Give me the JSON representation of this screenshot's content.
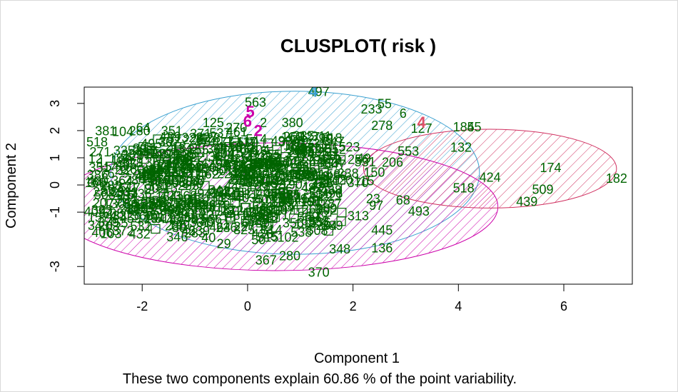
{
  "chart_data": {
    "type": "scatter",
    "title": "CLUSPLOT( risk )",
    "xlabel": "Component 1",
    "ylabel": "Component 2",
    "subtitle": "These two components explain 60.86 % of the point variability.",
    "xlim": [
      -3.1,
      7.3
    ],
    "ylim": [
      -3.65,
      3.6
    ],
    "xticks": [
      -2,
      0,
      2,
      4,
      6
    ],
    "yticks": [
      -3,
      -1,
      0,
      1,
      2,
      3
    ],
    "grid": false,
    "colors": {
      "points": "#006400",
      "cluster1": "#e03c8a",
      "cluster2": "#3aa0d0",
      "cluster3": "#cc00aa",
      "cluster4": "#e0506a",
      "cluster5": "#3aa0d0",
      "cluster6": "#cc00aa",
      "ellipse_blue": "#3aa0d0",
      "ellipse_magenta": "#cc00aa",
      "ellipse_pink": "#d03060"
    },
    "ellipses": [
      {
        "name": "blue",
        "cx": 0.9,
        "cy": 0.45,
        "rx": 3.5,
        "ry": 3.0,
        "color": "#3aa0d0"
      },
      {
        "name": "magenta",
        "cx": 0.55,
        "cy": -0.8,
        "rx": 4.2,
        "ry": 2.35,
        "color": "#cc00aa"
      },
      {
        "name": "pink",
        "cx": 4.6,
        "cy": 0.6,
        "rx": 2.4,
        "ry": 1.45,
        "color": "#d03060"
      }
    ],
    "cluster_labels": [
      {
        "label": "4",
        "x": 1.25,
        "y": 3.4,
        "color": "#3aa0d0"
      },
      {
        "label": "5",
        "x": 0.05,
        "y": 2.65,
        "color": "#cc00aa"
      },
      {
        "label": "6",
        "x": 0.0,
        "y": 2.3,
        "color": "#cc00aa"
      },
      {
        "label": "2",
        "x": 0.2,
        "y": 1.95,
        "color": "#cc00aa"
      },
      {
        "label": "4",
        "x": 3.3,
        "y": 2.25,
        "color": "#e0506a"
      }
    ],
    "points": [
      {
        "label": "497",
        "x": 1.35,
        "y": 3.4
      },
      {
        "label": "563",
        "x": 0.15,
        "y": 3.0
      },
      {
        "label": "55",
        "x": 2.6,
        "y": 2.95
      },
      {
        "label": "233",
        "x": 2.35,
        "y": 2.75
      },
      {
        "label": "6",
        "x": 2.95,
        "y": 2.6
      },
      {
        "label": "125",
        "x": -0.65,
        "y": 2.25
      },
      {
        "label": "2",
        "x": 0.3,
        "y": 2.25
      },
      {
        "label": "380",
        "x": 0.85,
        "y": 2.25
      },
      {
        "label": "278",
        "x": 2.55,
        "y": 2.15
      },
      {
        "label": "127",
        "x": 3.3,
        "y": 2.05
      },
      {
        "label": "185",
        "x": 4.1,
        "y": 2.1
      },
      {
        "label": "45",
        "x": 4.3,
        "y": 2.1
      },
      {
        "label": "328",
        "x": -1.05,
        "y": 1.7
      },
      {
        "label": "311",
        "x": 1.4,
        "y": 1.75
      },
      {
        "label": "553",
        "x": 3.05,
        "y": 1.2
      },
      {
        "label": "132",
        "x": 4.05,
        "y": 1.35
      },
      {
        "label": "206",
        "x": 2.75,
        "y": 0.8
      },
      {
        "label": "256",
        "x": 2.1,
        "y": 0.9
      },
      {
        "label": "174",
        "x": 5.75,
        "y": 0.6
      },
      {
        "label": "182",
        "x": 7.0,
        "y": 0.2
      },
      {
        "label": "424",
        "x": 4.6,
        "y": 0.25
      },
      {
        "label": "509",
        "x": 5.6,
        "y": -0.2
      },
      {
        "label": "439",
        "x": 5.3,
        "y": -0.65
      },
      {
        "label": "68",
        "x": 2.95,
        "y": -0.6
      },
      {
        "label": "493",
        "x": 3.25,
        "y": -1.0
      },
      {
        "label": "518",
        "x": 4.1,
        "y": -0.15
      },
      {
        "label": "445",
        "x": 2.55,
        "y": -1.7
      },
      {
        "label": "136",
        "x": 2.55,
        "y": -2.35
      },
      {
        "label": "348",
        "x": 1.75,
        "y": -2.4
      },
      {
        "label": "370",
        "x": 1.35,
        "y": -3.25
      },
      {
        "label": "367",
        "x": 0.35,
        "y": -2.8
      },
      {
        "label": "280",
        "x": 0.8,
        "y": -2.65
      },
      {
        "label": "29",
        "x": -0.45,
        "y": -2.2
      }
    ]
  }
}
